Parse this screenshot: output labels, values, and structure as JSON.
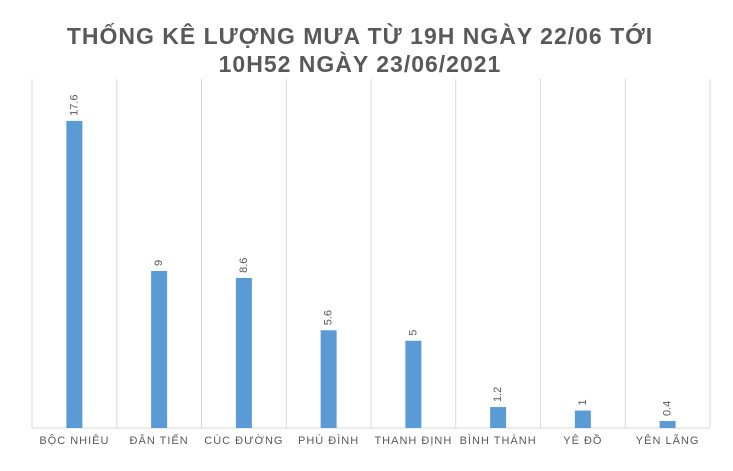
{
  "chart_data": {
    "type": "bar",
    "title": "THỐNG KÊ LƯỢNG MƯA TỪ 19H NGÀY 22/06 TỚI 10H52 NGÀY 23/06/2021",
    "categories": [
      "BỘC NHIÊU",
      "ĐÂN TIẾN",
      "CÚC ĐƯỜNG",
      "PHÚ ĐÌNH",
      "THANH ĐỊNH",
      "BÌNH THÀNH",
      "YÊ ĐỒ",
      "YÊN LÃNG"
    ],
    "values": [
      17.6,
      9,
      8.6,
      5.6,
      5,
      1.2,
      1,
      0.4
    ],
    "color": "#5b9bd5",
    "ylim": [
      0,
      20
    ],
    "grid": true
  }
}
